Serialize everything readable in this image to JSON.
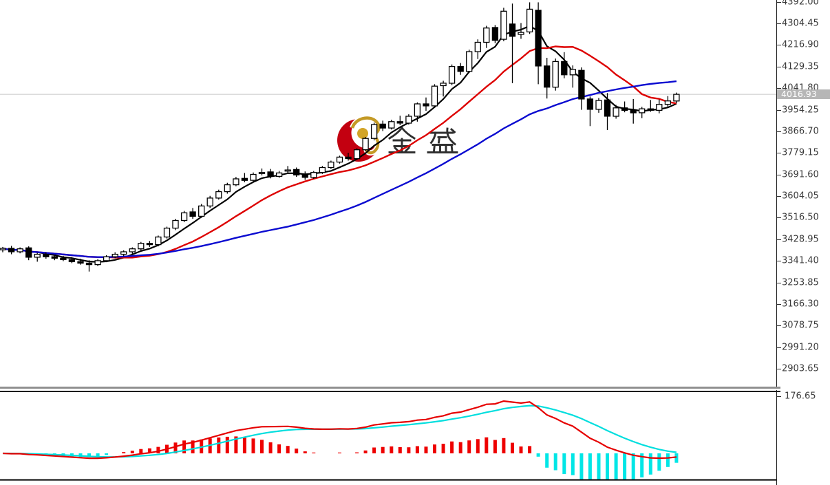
{
  "watermark": {
    "text": "金 盛",
    "logo_red": "#c30010",
    "logo_gold": "#c49a26",
    "text_color": "#2f2f2f"
  },
  "price_axis": {
    "ticks": [
      "4392.00",
      "4304.45",
      "4216.90",
      "4129.35",
      "4041.80",
      "3954.25",
      "3866.70",
      "3779.15",
      "3691.60",
      "3604.05",
      "3516.50",
      "3428.95",
      "3341.40",
      "3253.85",
      "3166.30",
      "3078.75",
      "2991.20",
      "2903.65"
    ],
    "current_price_label": "4016.93",
    "tag_bg": "#b6b6b6"
  },
  "indicator_axis": {
    "scale_label": "176.65"
  },
  "chart_data": {
    "type": "candlestick",
    "title": "",
    "xlabel": "",
    "ylabel": "",
    "grid": "off",
    "legend": "none",
    "price_panel": {
      "ylim": [
        2820,
        4400
      ],
      "up_color": "#ffffff",
      "down_color": "#000000",
      "current_price": 4016.93,
      "current_price_line_color": "#c8c8c8",
      "overlays": [
        {
          "name": "ma-fast",
          "type": "sma",
          "period": 5,
          "color": "#000000",
          "width": 2.2
        },
        {
          "name": "ma-mid",
          "type": "sma",
          "period": 13,
          "color": "#dd0000",
          "width": 2.4
        },
        {
          "name": "ma-slow",
          "type": "sma",
          "period": 34,
          "color": "#0a0ad0",
          "width": 2.4
        }
      ],
      "candles": [
        [
          3386,
          3398,
          3376,
          3392
        ],
        [
          3392,
          3402,
          3368,
          3378
        ],
        [
          3378,
          3396,
          3372,
          3390
        ],
        [
          3394,
          3400,
          3344,
          3356
        ],
        [
          3356,
          3374,
          3338,
          3368
        ],
        [
          3368,
          3376,
          3350,
          3358
        ],
        [
          3358,
          3366,
          3344,
          3352
        ],
        [
          3352,
          3362,
          3340,
          3346
        ],
        [
          3346,
          3356,
          3332,
          3338
        ],
        [
          3338,
          3350,
          3326,
          3332
        ],
        [
          3332,
          3344,
          3298,
          3326
        ],
        [
          3326,
          3348,
          3320,
          3342
        ],
        [
          3342,
          3364,
          3336,
          3358
        ],
        [
          3358,
          3376,
          3352,
          3368
        ],
        [
          3368,
          3384,
          3360,
          3378
        ],
        [
          3378,
          3396,
          3370,
          3390
        ],
        [
          3390,
          3418,
          3384,
          3412
        ],
        [
          3412,
          3422,
          3398,
          3407
        ],
        [
          3407,
          3444,
          3400,
          3438
        ],
        [
          3438,
          3480,
          3432,
          3474
        ],
        [
          3474,
          3512,
          3466,
          3505
        ],
        [
          3505,
          3544,
          3498,
          3536
        ],
        [
          3540,
          3556,
          3512,
          3522
        ],
        [
          3522,
          3572,
          3516,
          3564
        ],
        [
          3564,
          3605,
          3556,
          3596
        ],
        [
          3596,
          3630,
          3590,
          3622
        ],
        [
          3622,
          3658,
          3614,
          3650
        ],
        [
          3650,
          3682,
          3644,
          3674
        ],
        [
          3676,
          3698,
          3660,
          3668
        ],
        [
          3668,
          3700,
          3662,
          3692
        ],
        [
          3696,
          3716,
          3688,
          3700
        ],
        [
          3702,
          3714,
          3676,
          3684
        ],
        [
          3684,
          3706,
          3678,
          3698
        ],
        [
          3706,
          3726,
          3696,
          3710
        ],
        [
          3712,
          3720,
          3682,
          3690
        ],
        [
          3690,
          3704,
          3670,
          3680
        ],
        [
          3680,
          3706,
          3674,
          3700
        ],
        [
          3700,
          3726,
          3694,
          3720
        ],
        [
          3720,
          3748,
          3714,
          3742
        ],
        [
          3742,
          3768,
          3736,
          3762
        ],
        [
          3762,
          3780,
          3748,
          3756
        ],
        [
          3756,
          3798,
          3750,
          3792
        ],
        [
          3792,
          3844,
          3786,
          3838
        ],
        [
          3838,
          3902,
          3830,
          3894
        ],
        [
          3896,
          3910,
          3868,
          3880
        ],
        [
          3880,
          3914,
          3874,
          3906
        ],
        [
          3906,
          3930,
          3892,
          3900
        ],
        [
          3900,
          3936,
          3894,
          3928
        ],
        [
          3928,
          3984,
          3906,
          3978
        ],
        [
          3978,
          4004,
          3950,
          3970
        ],
        [
          3970,
          4058,
          3962,
          4050
        ],
        [
          4052,
          4072,
          4008,
          4062
        ],
        [
          4062,
          4138,
          4054,
          4130
        ],
        [
          4130,
          4144,
          4096,
          4110
        ],
        [
          4110,
          4198,
          4104,
          4190
        ],
        [
          4190,
          4240,
          4160,
          4228
        ],
        [
          4228,
          4295,
          4205,
          4286
        ],
        [
          4288,
          4298,
          4224,
          4236
        ],
        [
          4240,
          4368,
          4232,
          4354
        ],
        [
          4302,
          4385,
          4062,
          4252
        ],
        [
          4260,
          4306,
          4242,
          4268
        ],
        [
          4270,
          4390,
          4262,
          4362
        ],
        [
          4358,
          4390,
          4058,
          4132
        ],
        [
          4132,
          4165,
          4000,
          4046
        ],
        [
          4046,
          4162,
          4032,
          4150
        ],
        [
          4150,
          4188,
          4082,
          4096
        ],
        [
          4096,
          4134,
          4044,
          4118
        ],
        [
          4114,
          4126,
          3954,
          3998
        ],
        [
          3998,
          4008,
          3888,
          3956
        ],
        [
          3956,
          4002,
          3942,
          3992
        ],
        [
          3994,
          4022,
          3872,
          3928
        ],
        [
          3928,
          3974,
          3918,
          3962
        ],
        [
          3962,
          3988,
          3944,
          3952
        ],
        [
          3952,
          3998,
          3898,
          3942
        ],
        [
          3942,
          3966,
          3920,
          3958
        ],
        [
          3958,
          3994,
          3946,
          3952
        ],
        [
          3952,
          3996,
          3940,
          3976
        ],
        [
          3976,
          4010,
          3962,
          3990
        ],
        [
          3990,
          4024,
          3980,
          4017
        ]
      ]
    },
    "macd_panel": {
      "type": "macd",
      "fast": 12,
      "slow": 26,
      "signal": 9,
      "scale_label": 176.65,
      "dif_color": "#e60000",
      "dea_color": "#00dede",
      "bar_up_color": "#ee0000",
      "bar_down_color": "#00e6e6"
    }
  }
}
